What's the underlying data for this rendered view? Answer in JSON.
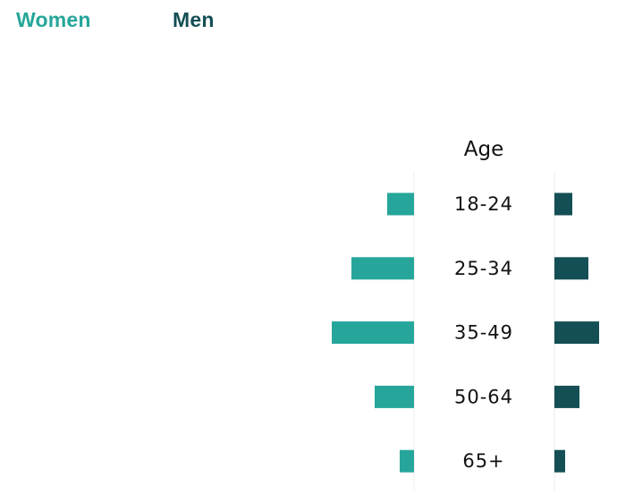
{
  "legend": {
    "women_label": "Women",
    "men_label": "Men"
  },
  "colors": {
    "women": "#26a69a",
    "men": "#144f55",
    "divider": "#eeeeee",
    "text": "#111111"
  },
  "chart_data": {
    "type": "bar",
    "subtype": "butterfly",
    "category_title": "Age",
    "categories": [
      "18-24",
      "25-34",
      "35-49",
      "50-64",
      "65+"
    ],
    "series": [
      {
        "name": "Women",
        "values": [
          3,
          7,
          9.2,
          4.4,
          1.6
        ]
      },
      {
        "name": "Men",
        "values": [
          2,
          3.8,
          5,
          2.8,
          1.2
        ]
      }
    ],
    "grid": false,
    "legend_position": "top-left"
  }
}
